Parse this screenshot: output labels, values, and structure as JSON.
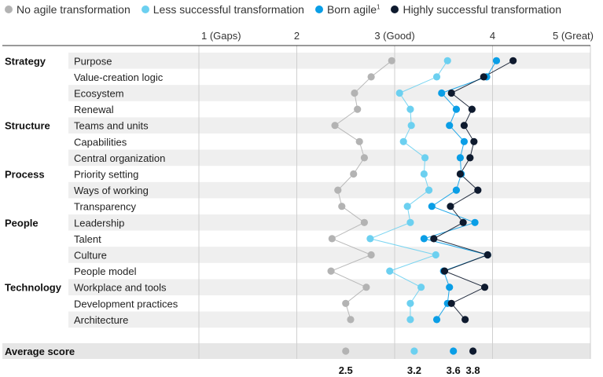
{
  "legend": [
    {
      "label": "No agile transformation",
      "color": "#b3b3b3"
    },
    {
      "label": "Less successful transformation",
      "color": "#6cd0f0"
    },
    {
      "label": "Born agile",
      "sup": "1",
      "color": "#0a9ee6"
    },
    {
      "label": "Highly successful transformation",
      "color": "#0e1a2e"
    }
  ],
  "chart_data": {
    "type": "scatter",
    "x_ticks": [
      {
        "value": 1,
        "label": "1 (Gaps)"
      },
      {
        "value": 2,
        "label": "2"
      },
      {
        "value": 3,
        "label": "3 (Good)"
      },
      {
        "value": 4,
        "label": "4"
      },
      {
        "value": 5,
        "label": "5 (Great)"
      }
    ],
    "xlim": [
      1,
      5
    ],
    "grid": true,
    "legend_position": "top",
    "groups": [
      {
        "name": "Strategy",
        "start": 0
      },
      {
        "name": "Structure",
        "start": 4
      },
      {
        "name": "Process",
        "start": 7
      },
      {
        "name": "People",
        "start": 10
      },
      {
        "name": "Technology",
        "start": 14
      }
    ],
    "categories": [
      "Purpose",
      "Value-creation logic",
      "Ecosystem",
      "Renewal",
      "Teams and units",
      "Capabilities",
      "Central organization",
      "Priority setting",
      "Ways of working",
      "Transparency",
      "Leadership",
      "Talent",
      "Culture",
      "People model",
      "Workplace and tools",
      "Development practices",
      "Architecture"
    ],
    "series": [
      {
        "name": "No agile transformation",
        "color": "#b3b3b3",
        "values": [
          2.97,
          2.76,
          2.59,
          2.62,
          2.39,
          2.64,
          2.69,
          2.58,
          2.42,
          2.46,
          2.69,
          2.36,
          2.76,
          2.35,
          2.71,
          2.5,
          2.55
        ]
      },
      {
        "name": "Less successful transformation",
        "color": "#6cd0f0",
        "values": [
          3.54,
          3.43,
          3.05,
          3.16,
          3.17,
          3.09,
          3.31,
          3.3,
          3.35,
          3.13,
          3.16,
          2.75,
          3.42,
          2.95,
          3.27,
          3.16,
          3.16
        ]
      },
      {
        "name": "Born agile",
        "color": "#0a9ee6",
        "values": [
          4.04,
          3.94,
          3.48,
          3.63,
          3.56,
          3.71,
          3.67,
          3.68,
          3.63,
          3.38,
          3.82,
          3.3,
          3.95,
          3.5,
          3.56,
          3.54,
          3.43
        ]
      },
      {
        "name": "Highly successful transformation",
        "color": "#0e1a2e",
        "values": [
          4.21,
          3.91,
          3.58,
          3.79,
          3.71,
          3.81,
          3.77,
          3.67,
          3.85,
          3.57,
          3.7,
          3.4,
          3.95,
          3.51,
          3.92,
          3.58,
          3.72
        ]
      }
    ],
    "average": {
      "label": "Average score",
      "values": [
        2.5,
        3.2,
        3.6,
        3.8
      ],
      "labels": [
        "2.5",
        "3.2",
        "3.6",
        "3.8"
      ]
    }
  }
}
